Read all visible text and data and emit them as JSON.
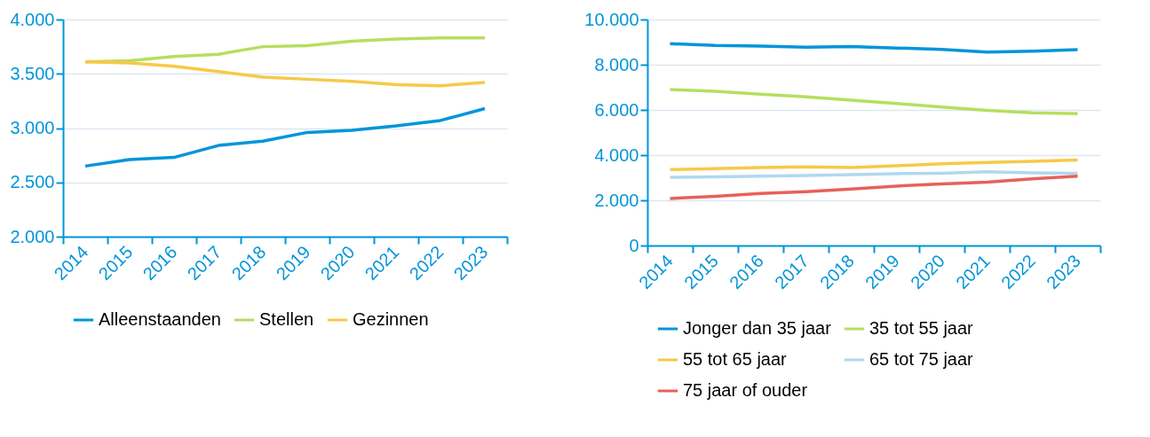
{
  "chart_data": [
    {
      "type": "line",
      "categories": [
        "2014",
        "2015",
        "2016",
        "2017",
        "2018",
        "2019",
        "2020",
        "2021",
        "2022",
        "2023"
      ],
      "ylim": [
        2000,
        4000
      ],
      "yticks": [
        {
          "value": 2000,
          "label": "2.000"
        },
        {
          "value": 2500,
          "label": "2.500"
        },
        {
          "value": 3000,
          "label": "3.000"
        },
        {
          "value": 3500,
          "label": "3.500"
        },
        {
          "value": 4000,
          "label": "4.000"
        }
      ],
      "grid": "y",
      "legend": "bottom",
      "marker": "none",
      "line_style": "solid",
      "series": [
        {
          "name": "Alleenstaanden",
          "color": "#0095d9",
          "values": [
            2650,
            2710,
            2730,
            2840,
            2880,
            2960,
            2980,
            3020,
            3070,
            3180
          ]
        },
        {
          "name": "Stellen",
          "color": "#b5df5f",
          "values": [
            3610,
            3620,
            3660,
            3680,
            3750,
            3760,
            3800,
            3820,
            3830,
            3830
          ]
        },
        {
          "name": "Gezinnen",
          "color": "#f7c948",
          "values": [
            3610,
            3600,
            3570,
            3520,
            3470,
            3450,
            3430,
            3400,
            3390,
            3420
          ]
        }
      ]
    },
    {
      "type": "line",
      "categories": [
        "2014",
        "2015",
        "2016",
        "2017",
        "2018",
        "2019",
        "2020",
        "2021",
        "2022",
        "2023"
      ],
      "ylim": [
        0,
        10000
      ],
      "yticks": [
        0,
        {
          "value": 2000,
          "label": "2.000"
        },
        {
          "value": 4000,
          "label": "4.000"
        },
        {
          "value": 6000,
          "label": "6.000"
        },
        {
          "value": 8000,
          "label": "8.000"
        },
        {
          "value": 10000,
          "label": "10.000"
        }
      ],
      "grid": "y",
      "legend": "bottom",
      "marker": "none",
      "line_style": "solid",
      "series": [
        {
          "name": "Jonger dan 35 jaar",
          "color": "#0095d9",
          "values": [
            8930,
            8850,
            8820,
            8770,
            8800,
            8740,
            8680,
            8560,
            8600,
            8670
          ]
        },
        {
          "name": "35 tot 55 jaar",
          "color": "#b5df5f",
          "values": [
            6900,
            6820,
            6700,
            6580,
            6430,
            6280,
            6130,
            5980,
            5870,
            5830
          ]
        },
        {
          "name": "55 tot 65 jaar",
          "color": "#f7c948",
          "values": [
            3360,
            3400,
            3450,
            3480,
            3450,
            3530,
            3620,
            3680,
            3730,
            3780
          ]
        },
        {
          "name": "65 tot 75 jaar",
          "color": "#b0d8ee",
          "values": [
            3020,
            3040,
            3070,
            3100,
            3140,
            3180,
            3200,
            3260,
            3220,
            3200
          ]
        },
        {
          "name": "75 jaar of ouder",
          "color": "#e8605a",
          "values": [
            2080,
            2180,
            2300,
            2380,
            2500,
            2630,
            2730,
            2800,
            2950,
            3070
          ]
        }
      ]
    }
  ]
}
